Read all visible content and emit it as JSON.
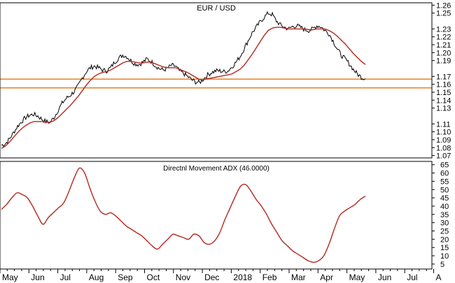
{
  "chart_data": [
    {
      "type": "line",
      "title": "EUR / USD",
      "y_ticks": [
        "1.26",
        "1.25",
        "1.23",
        "1.22",
        "1.21",
        "1.20",
        "1.19",
        "1.17",
        "1.16",
        "1.15",
        "1.14",
        "1.13",
        "1.11",
        "1.10",
        "1.09",
        "1.08",
        "1.07"
      ],
      "x_ticks": [
        "May",
        "Jun",
        "Jul",
        "Aug",
        "Sep",
        "Oct",
        "Nov",
        "Dec",
        "2018",
        "Feb",
        "Mar",
        "Apr",
        "May",
        "Jun",
        "Jul",
        "A"
      ],
      "ylim": [
        1.067,
        1.263
      ],
      "horizontal_lines": [
        1.1665,
        1.1555
      ],
      "series": [
        {
          "values": [
            1.083,
            1.085,
            1.091,
            1.099,
            1.107,
            1.113,
            1.118,
            1.121,
            1.122,
            1.12,
            1.116,
            1.113,
            1.112,
            1.118,
            1.127,
            1.136,
            1.142,
            1.146,
            1.151,
            1.158,
            1.168,
            1.176,
            1.181,
            1.183,
            1.181,
            1.178,
            1.177,
            1.181,
            1.188,
            1.193,
            1.197,
            1.195,
            1.19,
            1.186,
            1.185,
            1.188,
            1.192,
            1.189,
            1.184,
            1.18,
            1.178,
            1.18,
            1.184,
            1.183,
            1.177,
            1.174,
            1.17,
            1.166,
            1.163,
            1.162,
            1.167,
            1.172,
            1.175,
            1.177,
            1.177,
            1.176,
            1.177,
            1.182,
            1.188,
            1.195,
            1.205,
            1.215,
            1.225,
            1.232,
            1.239,
            1.245,
            1.25,
            1.248,
            1.24,
            1.235,
            1.232,
            1.23,
            1.233,
            1.234,
            1.232,
            1.229,
            1.228,
            1.23,
            1.234,
            1.233,
            1.228,
            1.224,
            1.215,
            1.205,
            1.197,
            1.192,
            1.186,
            1.179,
            1.173,
            1.169,
            1.167
          ]
        },
        {
          "values": [
            1.079,
            1.082,
            1.087,
            1.093,
            1.099,
            1.104,
            1.108,
            1.111,
            1.113,
            1.113,
            1.113,
            1.112,
            1.112,
            1.114,
            1.118,
            1.123,
            1.128,
            1.133,
            1.139,
            1.145,
            1.152,
            1.159,
            1.165,
            1.17,
            1.173,
            1.175,
            1.176,
            1.178,
            1.181,
            1.184,
            1.187,
            1.189,
            1.189,
            1.188,
            1.187,
            1.187,
            1.188,
            1.188,
            1.186,
            1.184,
            1.182,
            1.181,
            1.181,
            1.181,
            1.179,
            1.177,
            1.175,
            1.172,
            1.169,
            1.166,
            1.166,
            1.167,
            1.168,
            1.169,
            1.17,
            1.171,
            1.172,
            1.173,
            1.176,
            1.179,
            1.184,
            1.191,
            1.198,
            1.206,
            1.214,
            1.222,
            1.228,
            1.231,
            1.232,
            1.232,
            1.231,
            1.23,
            1.23,
            1.23,
            1.23,
            1.23,
            1.229,
            1.229,
            1.23,
            1.23,
            1.23,
            1.228,
            1.225,
            1.221,
            1.216,
            1.211,
            1.205,
            1.199,
            1.194,
            1.189,
            1.185
          ]
        }
      ]
    },
    {
      "type": "line",
      "title": "Directnl Movement ADX (46.0000)",
      "y_ticks": [
        "65",
        "60",
        "55",
        "50",
        "45",
        "40",
        "35",
        "30",
        "25",
        "20",
        "15",
        "10",
        "5"
      ],
      "ylim": [
        2,
        67
      ],
      "series": [
        {
          "values": [
            38,
            41,
            45,
            48,
            47,
            45,
            40,
            34,
            29,
            33,
            36,
            39,
            42,
            49,
            57,
            63,
            60,
            51,
            43,
            37,
            35,
            36,
            34,
            31,
            28,
            26,
            24,
            22,
            19,
            16,
            14,
            17,
            20,
            23,
            22,
            21,
            20,
            23,
            22,
            18,
            17,
            19,
            24,
            32,
            39,
            46,
            52,
            53,
            49,
            44,
            40,
            35,
            29,
            24,
            19,
            16,
            13,
            11,
            9,
            7,
            6,
            7,
            10,
            17,
            26,
            34,
            37,
            39,
            41,
            44,
            46
          ]
        }
      ]
    }
  ]
}
